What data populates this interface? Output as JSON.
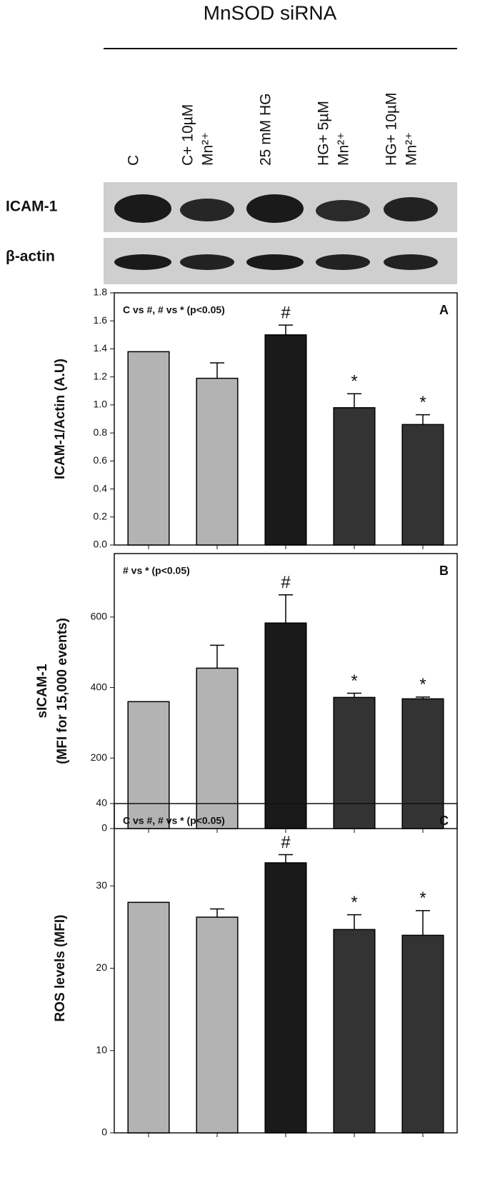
{
  "header": {
    "title": "MnSOD siRNA",
    "lanes": [
      [
        "C"
      ],
      [
        "C+ 10µM",
        "Mn²⁺"
      ],
      [
        "25 mM HG"
      ],
      [
        "HG+ 5µM",
        "Mn²⁺"
      ],
      [
        "HG+ 10µM",
        "Mn²⁺"
      ]
    ],
    "blots": [
      "ICAM-1",
      "β-actin"
    ]
  },
  "chart_data": [
    {
      "type": "bar",
      "ylabel": [
        "ICAM-1/Actin (A.U)"
      ],
      "note": "C vs #,  # vs *   (p<0.05)",
      "panel": "A",
      "categories": [
        null,
        null,
        null,
        null,
        null
      ],
      "values": [
        1.38,
        1.19,
        1.5,
        0.98,
        0.86
      ],
      "errors": [
        null,
        0.11,
        0.07,
        0.1,
        0.07
      ],
      "markers": [
        null,
        null,
        "#",
        "*",
        "*"
      ],
      "colors": [
        "#b3b3b3",
        "#b3b3b3",
        "#1a1a1a",
        "#333333",
        "#333333"
      ],
      "ylim": [
        0,
        1.8
      ],
      "yticks": [
        {
          "value": 0,
          "label": "0.0"
        },
        {
          "value": 0.2,
          "label": "0.2"
        },
        {
          "value": 0.4,
          "label": "0.4"
        },
        {
          "value": 0.6,
          "label": "0.6"
        },
        {
          "value": 0.8,
          "label": "0.8"
        },
        {
          "value": 1,
          "label": "1.0"
        },
        {
          "value": 1.2,
          "label": "1.2"
        },
        {
          "value": 1.4,
          "label": "1.4"
        },
        {
          "value": 1.6,
          "label": "1.6"
        },
        {
          "value": 1.8,
          "label": "1.8"
        }
      ]
    },
    {
      "type": "bar",
      "ylabel": [
        "sICAM-1",
        "(MFI for 15,000 events)"
      ],
      "note": "# vs *   (p<0.05)",
      "panel": "B",
      "categories": [
        null,
        null,
        null,
        null,
        null
      ],
      "values": [
        360,
        455,
        583,
        372,
        368
      ],
      "errors": [
        null,
        65,
        80,
        12,
        5
      ],
      "markers": [
        null,
        null,
        "#",
        "*",
        "*"
      ],
      "colors": [
        "#b3b3b3",
        "#b3b3b3",
        "#1a1a1a",
        "#333333",
        "#333333"
      ],
      "ylim": [
        0,
        780
      ],
      "yticks": [
        0,
        200,
        400,
        600
      ]
    },
    {
      "type": "bar",
      "ylabel": [
        "ROS levels (MFI)"
      ],
      "note": "C vs #,  # vs *   (p<0.05)",
      "panel": "C",
      "categories": [
        null,
        null,
        null,
        null,
        null
      ],
      "values": [
        28,
        26.2,
        32.8,
        24.7,
        24
      ],
      "errors": [
        null,
        1,
        1,
        1.8,
        3
      ],
      "markers": [
        null,
        null,
        "#",
        "*",
        "*"
      ],
      "colors": [
        "#b3b3b3",
        "#b3b3b3",
        "#1a1a1a",
        "#333333",
        "#333333"
      ],
      "ylim": [
        0,
        40
      ],
      "yticks": [
        0,
        10,
        20,
        30,
        40
      ]
    }
  ]
}
